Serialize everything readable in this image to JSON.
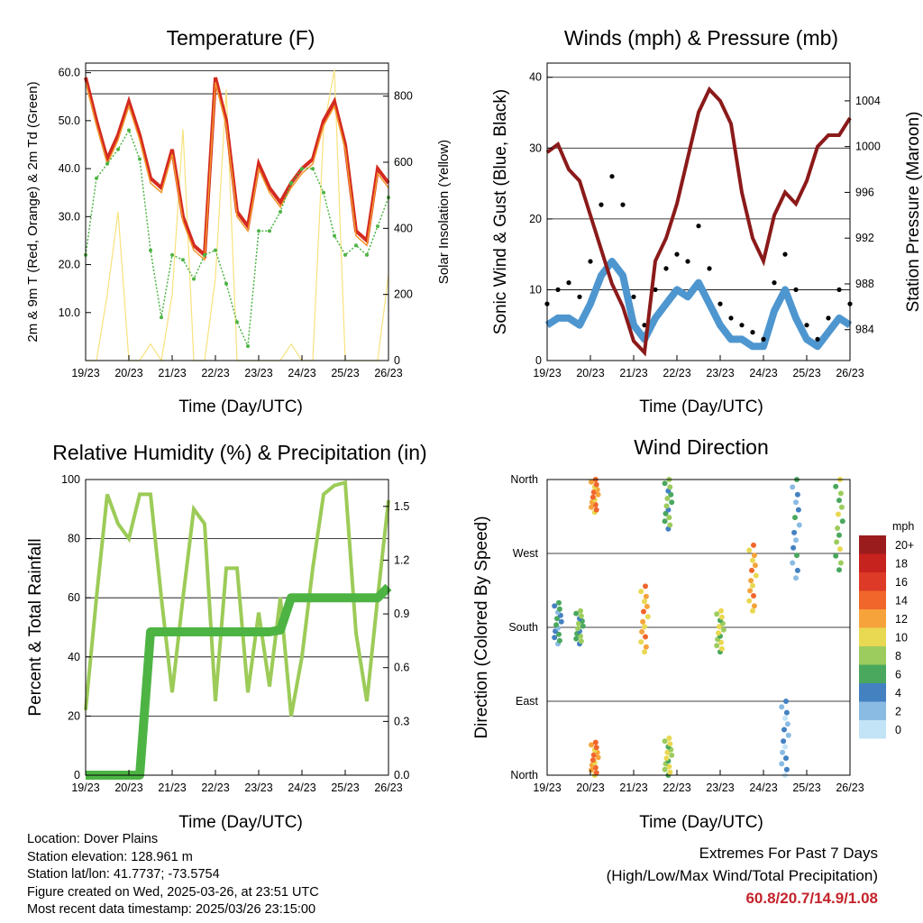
{
  "info": {
    "location": "Location: Dover Plains",
    "elevation": "Station elevation: 128.961 m",
    "latlon": "Station lat/lon: 41.7737; -73.5754",
    "created": "Figure created on Wed, 2025-03-26, at 23:51 UTC",
    "latest": "Most recent data timestamp: 2025/03/26 23:15:00"
  },
  "extremes": {
    "title": "Extremes For Past 7 Days",
    "subtitle": "(High/Low/Max Wind/Total Precipitation)",
    "values": "60.8/20.7/14.9/1.08",
    "color": "#c4232b"
  },
  "chart_data": [
    {
      "type": "line",
      "title": "Temperature (F)",
      "xlabel": "Time (Day/UTC)",
      "ylabel": "2m & 9m T (Red, Orange) & 2m Td (Green)",
      "y2label": "Solar Insolation (Yellow)",
      "x_ticks": [
        "19/23",
        "20/23",
        "21/23",
        "22/23",
        "23/23",
        "24/23",
        "25/23",
        "26/23"
      ],
      "ylim": [
        0,
        62
      ],
      "y_ticks": [
        "10.0",
        "20.0",
        "30.0",
        "40.0",
        "50.0",
        "60.0"
      ],
      "y2lim": [
        0,
        900
      ],
      "y2_ticks": [
        "0",
        "200",
        "400",
        "600",
        "800"
      ],
      "grid": true,
      "x": [
        0,
        0.25,
        0.5,
        0.75,
        1,
        1.25,
        1.5,
        1.75,
        2,
        2.25,
        2.5,
        2.75,
        3,
        3.25,
        3.5,
        3.75,
        4,
        4.25,
        4.5,
        4.75,
        5,
        5.25,
        5.5,
        5.75,
        6,
        6.25,
        6.5,
        6.75,
        7
      ],
      "series": [
        {
          "color": "#d42a20",
          "values": [
            59,
            50,
            42,
            47,
            54,
            47,
            38,
            36,
            44,
            30,
            24,
            22,
            59,
            50,
            31,
            28,
            41,
            36,
            33,
            37,
            40,
            42,
            50,
            54,
            45,
            27,
            25,
            40,
            37
          ]
        },
        {
          "color": "#f3962b",
          "values": [
            58,
            49,
            41,
            46,
            53,
            46,
            37,
            35,
            43,
            29,
            23,
            21,
            58,
            49,
            30,
            27,
            40,
            35,
            32,
            36,
            39,
            41,
            49,
            53,
            44,
            26,
            24,
            39,
            36
          ]
        },
        {
          "color": "#4db444",
          "values": [
            22,
            38,
            41,
            44,
            48,
            42,
            23,
            9,
            22,
            21,
            17,
            22,
            23,
            16,
            8,
            3,
            27,
            27,
            31,
            37,
            40,
            40,
            35,
            26,
            22,
            24,
            22,
            28,
            34
          ]
        },
        {
          "color": "#f7e27e",
          "values": [
            0,
            0,
            200,
            450,
            0,
            0,
            50,
            0,
            200,
            700,
            0,
            0,
            250,
            820,
            0,
            0,
            0,
            0,
            0,
            50,
            0,
            0,
            700,
            880,
            0,
            0,
            0,
            0,
            260
          ]
        }
      ]
    },
    {
      "type": "line",
      "title": "Winds (mph) & Pressure (mb)",
      "xlabel": "Time (Day/UTC)",
      "ylabel": "Sonic Wind & Gust (Blue, Black)",
      "y2label": "Station Pressure (Maroon)",
      "x_ticks": [
        "19/23",
        "20/23",
        "21/23",
        "22/23",
        "23/23",
        "24/23",
        "25/23",
        "26/23"
      ],
      "ylim": [
        0,
        42
      ],
      "y_ticks": [
        "0",
        "10",
        "20",
        "30",
        "40"
      ],
      "y2lim": [
        981.3,
        1007.3
      ],
      "y2_ticks": [
        "984",
        "988",
        "992",
        "996",
        "1000",
        "1004"
      ],
      "grid": true,
      "x": [
        0,
        0.25,
        0.5,
        0.75,
        1,
        1.25,
        1.5,
        1.75,
        2,
        2.25,
        2.5,
        2.75,
        3,
        3.25,
        3.5,
        3.75,
        4,
        4.25,
        4.5,
        4.75,
        5,
        5.25,
        5.5,
        5.75,
        6,
        6.25,
        6.5,
        6.75,
        7
      ],
      "series": [
        {
          "color": "#8b1a1a",
          "values": [
            999.5,
            1000.2,
            998,
            997,
            994,
            991,
            988,
            986,
            983,
            982,
            990,
            992,
            995,
            999,
            1003,
            1005,
            1004,
            1002,
            996,
            992,
            990,
            994,
            996,
            995,
            997,
            1000,
            1001,
            1001,
            1002.5
          ]
        },
        {
          "color": "#000000",
          "values": [
            8,
            10,
            11,
            9,
            14,
            22,
            26,
            22,
            9,
            5,
            10,
            13,
            15,
            14,
            19,
            13,
            8,
            6,
            5,
            4,
            3,
            11,
            15,
            10,
            5,
            3,
            6,
            10,
            8
          ]
        },
        {
          "color": "#4e96cf",
          "values": [
            5,
            6,
            6,
            5,
            8,
            12,
            14,
            12,
            5,
            3,
            6,
            8,
            10,
            9,
            11,
            8,
            5,
            3,
            3,
            2,
            2,
            7,
            10,
            6,
            3,
            2,
            4,
            6,
            5
          ]
        }
      ]
    },
    {
      "type": "line",
      "title": "Relative Humidity (%) & Precipitation (in)",
      "xlabel": "Time (Day/UTC)",
      "ylabel": "Percent & Total Rainfall",
      "x_ticks": [
        "19/23",
        "20/23",
        "21/23",
        "22/23",
        "23/23",
        "24/23",
        "25/23",
        "26/23"
      ],
      "ylim": [
        0,
        100
      ],
      "y_ticks": [
        "0",
        "20",
        "40",
        "60",
        "80",
        "100"
      ],
      "y2lim": [
        0,
        1.65
      ],
      "y2_ticks": [
        "0.0",
        "0.3",
        "0.6",
        "0.9",
        "1.2",
        "1.5"
      ],
      "grid": true,
      "x": [
        0,
        0.25,
        0.5,
        0.75,
        1,
        1.25,
        1.5,
        1.75,
        2,
        2.25,
        2.5,
        2.75,
        3,
        3.25,
        3.5,
        3.75,
        4,
        4.25,
        4.5,
        4.75,
        5,
        5.25,
        5.5,
        5.75,
        6,
        6.25,
        6.5,
        6.75,
        7
      ],
      "series": [
        {
          "color": "#9ccb58",
          "values": [
            22,
            60,
            95,
            85,
            80,
            95,
            95,
            60,
            28,
            60,
            90,
            85,
            25,
            70,
            70,
            28,
            55,
            30,
            60,
            20,
            40,
            70,
            95,
            98,
            99,
            48,
            25,
            60,
            93
          ]
        },
        {
          "color": "#4db444",
          "values": [
            0,
            0,
            0,
            0,
            0,
            0,
            0.8,
            0.8,
            0.8,
            0.8,
            0.8,
            0.8,
            0.8,
            0.8,
            0.8,
            0.8,
            0.8,
            0.8,
            0.81,
            0.99,
            0.99,
            0.99,
            0.99,
            0.99,
            0.99,
            0.99,
            0.99,
            0.99,
            1.05
          ]
        }
      ]
    },
    {
      "type": "scatter",
      "title": "Wind Direction",
      "xlabel": "Time (Day/UTC)",
      "ylabel": "Direction (Colored By Speed)",
      "x_ticks": [
        "19/23",
        "20/23",
        "21/23",
        "22/23",
        "23/23",
        "24/23",
        "25/23",
        "26/23"
      ],
      "y_ticks": [
        "North",
        "East",
        "South",
        "West",
        "North"
      ],
      "ylim": [
        0,
        360
      ],
      "legend": {
        "title": "mph",
        "position": "right",
        "labels": [
          "20+",
          "18",
          "16",
          "14",
          "12",
          "10",
          "8",
          "6",
          "4",
          "2",
          "0"
        ],
        "colors": [
          "#9b1c1c",
          "#c6221e",
          "#dd3a27",
          "#f0662b",
          "#f6a33b",
          "#e9d852",
          "#9dcc5e",
          "#4aa85e",
          "#4381c1",
          "#8abbe3",
          "#c3e3f7"
        ]
      },
      "clusters": [
        {
          "x": 0.25,
          "y": [
            160,
            210
          ],
          "speed": 4
        },
        {
          "x": 0.75,
          "y": [
            160,
            200
          ],
          "speed": 6
        },
        {
          "x": 1.1,
          "y": [
            0,
            40
          ],
          "speed": 12
        },
        {
          "x": 1.1,
          "y": [
            320,
            360
          ],
          "speed": 12
        },
        {
          "x": 2.25,
          "y": [
            150,
            230
          ],
          "speed": 11
        },
        {
          "x": 2.8,
          "y": [
            0,
            45
          ],
          "speed": 8
        },
        {
          "x": 2.8,
          "y": [
            300,
            360
          ],
          "speed": 6
        },
        {
          "x": 4.0,
          "y": [
            150,
            200
          ],
          "speed": 8
        },
        {
          "x": 4.75,
          "y": [
            200,
            280
          ],
          "speed": 11
        },
        {
          "x": 5.5,
          "y": [
            0,
            90
          ],
          "speed": 2
        },
        {
          "x": 5.75,
          "y": [
            240,
            360
          ],
          "speed": 3
        },
        {
          "x": 6.75,
          "y": [
            250,
            360
          ],
          "speed": 7
        }
      ]
    }
  ]
}
